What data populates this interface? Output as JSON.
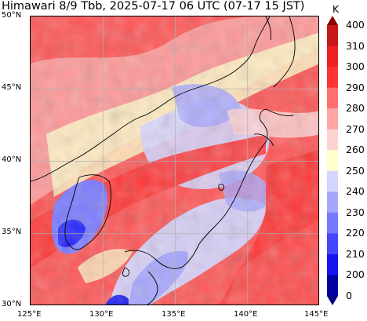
{
  "title": "Himawari 8/9 Tbb, 2025-07-17 06 UTC (07-17 15 JST)",
  "lon_labels": [
    "125°E",
    "130°E",
    "135°E",
    "140°E",
    "145°E"
  ],
  "lat_labels": [
    "50°N",
    "45°N",
    "40°N",
    "35°N",
    "30°N"
  ],
  "colorbar": {
    "unit": "K",
    "labels": [
      "400",
      "310",
      "300",
      "290",
      "280",
      "270",
      "260",
      "250",
      "240",
      "230",
      "220",
      "210",
      "200",
      "0"
    ],
    "colors": [
      "#8b0000",
      "#c81818",
      "#ee2222",
      "#ff3333",
      "#ff6f6f",
      "#ffa5a5",
      "#ffd2d2",
      "#ffffcc",
      "#d5d5ff",
      "#a6a6ff",
      "#7878ff",
      "#4545ff",
      "#1515ee",
      "#0000a5",
      "#000080"
    ]
  }
}
